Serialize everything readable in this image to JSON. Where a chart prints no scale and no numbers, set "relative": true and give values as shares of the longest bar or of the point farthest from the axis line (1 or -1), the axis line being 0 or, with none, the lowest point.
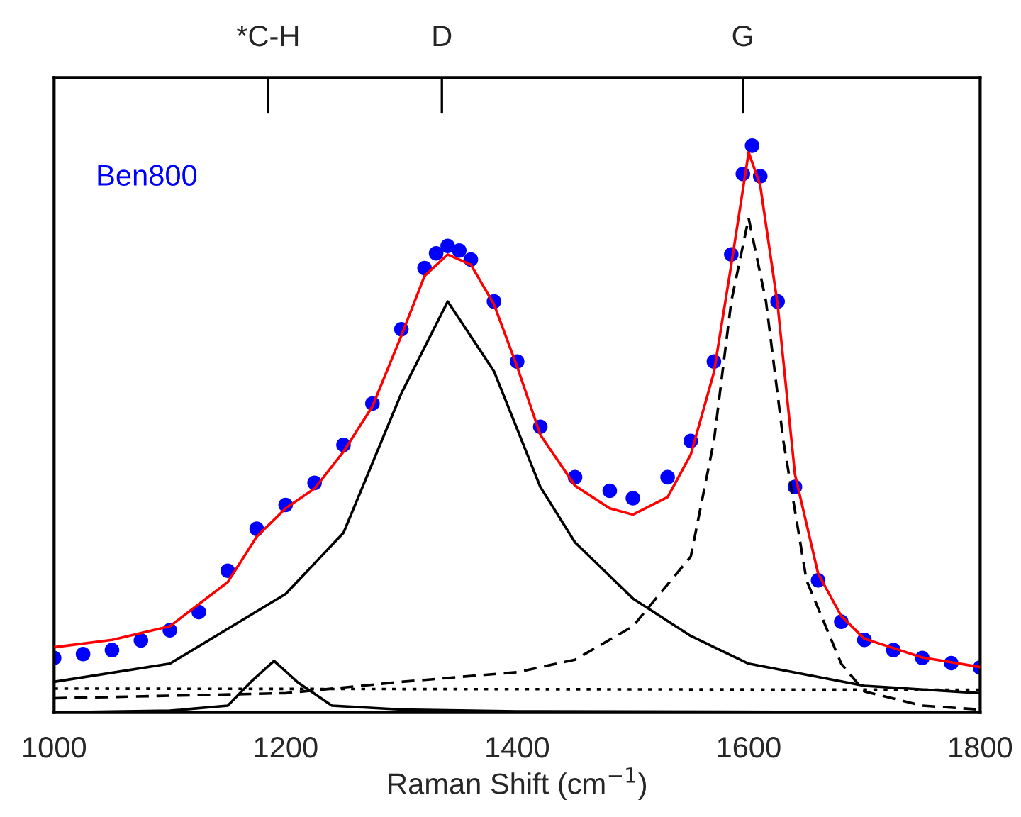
{
  "chart_data": {
    "type": "line",
    "relative": true,
    "xlabel": "Raman Shift (cm$^{−1}$)",
    "xlim": [
      1000,
      1800
    ],
    "xticks": [
      1000,
      1200,
      1400,
      1600,
      1800
    ],
    "ref_lines": [
      {
        "axis": "x",
        "value": 1185,
        "label": "*C-H"
      },
      {
        "axis": "x",
        "value": 1335,
        "label": "D"
      },
      {
        "axis": "x",
        "value": 1595,
        "label": "G"
      }
    ],
    "annotations": [
      "Ben800"
    ],
    "series": [
      {
        "type": "scatter",
        "color": "#0000ff",
        "marker": "circle",
        "x": [
          1000,
          1025,
          1050,
          1075,
          1100,
          1125,
          1150,
          1175,
          1200,
          1225,
          1250,
          1275,
          1300,
          1320,
          1330,
          1340,
          1350,
          1360,
          1380,
          1400,
          1420,
          1450,
          1480,
          1500,
          1530,
          1550,
          1570,
          1585,
          1595,
          1603,
          1610,
          1625,
          1640,
          1660,
          1680,
          1700,
          1725,
          1750,
          1775,
          1800
        ],
        "values": [
          0.096,
          0.103,
          0.11,
          0.127,
          0.145,
          0.177,
          0.25,
          0.324,
          0.366,
          0.405,
          0.472,
          0.545,
          0.676,
          0.784,
          0.81,
          0.823,
          0.815,
          0.799,
          0.725,
          0.619,
          0.504,
          0.415,
          0.391,
          0.378,
          0.415,
          0.479,
          0.619,
          0.808,
          0.95,
          1.0,
          0.946,
          0.725,
          0.398,
          0.233,
          0.16,
          0.128,
          0.11,
          0.096,
          0.087,
          0.079
        ]
      },
      {
        "color": "#ff0000",
        "line_style": "solid",
        "x": [
          1000,
          1050,
          1100,
          1150,
          1175,
          1200,
          1225,
          1250,
          1275,
          1300,
          1320,
          1340,
          1360,
          1380,
          1400,
          1420,
          1450,
          1480,
          1500,
          1530,
          1550,
          1570,
          1585,
          1600,
          1610,
          1625,
          1640,
          1660,
          1680,
          1700,
          1750,
          1800
        ],
        "values": [
          0.115,
          0.128,
          0.152,
          0.23,
          0.31,
          0.36,
          0.395,
          0.46,
          0.54,
          0.665,
          0.77,
          0.808,
          0.79,
          0.72,
          0.61,
          0.49,
          0.4,
          0.36,
          0.349,
          0.38,
          0.455,
          0.6,
          0.79,
          0.988,
          0.93,
          0.72,
          0.42,
          0.245,
          0.17,
          0.13,
          0.097,
          0.08
        ]
      },
      {
        "color": "#000000",
        "line_style": "solid",
        "x": [
          1000,
          1100,
          1200,
          1250,
          1300,
          1340,
          1380,
          1420,
          1450,
          1500,
          1550,
          1600,
          1700,
          1800
        ],
        "values": [
          0.054,
          0.086,
          0.209,
          0.317,
          0.563,
          0.725,
          0.602,
          0.398,
          0.3,
          0.201,
          0.135,
          0.086,
          0.047,
          0.034
        ]
      },
      {
        "color": "#000000",
        "line_style": "solid",
        "x": [
          1000,
          1100,
          1150,
          1170,
          1190,
          1210,
          1240,
          1300,
          1400,
          1800
        ],
        "values": [
          0.0,
          0.003,
          0.012,
          0.054,
          0.091,
          0.054,
          0.012,
          0.005,
          0.002,
          0.0
        ]
      },
      {
        "color": "#000000",
        "line_style": "dashed",
        "x": [
          1000,
          1200,
          1300,
          1400,
          1450,
          1500,
          1550,
          1570,
          1585,
          1600,
          1615,
          1630,
          1650,
          1680,
          1700,
          1750,
          1800
        ],
        "values": [
          0.025,
          0.034,
          0.054,
          0.071,
          0.093,
          0.152,
          0.275,
          0.479,
          0.725,
          0.872,
          0.725,
          0.479,
          0.233,
          0.086,
          0.037,
          0.012,
          0.005
        ]
      },
      {
        "color": "#000000",
        "line_style": "dotted",
        "x": [
          1000,
          1800
        ],
        "values": [
          0.042,
          0.04
        ]
      }
    ]
  }
}
